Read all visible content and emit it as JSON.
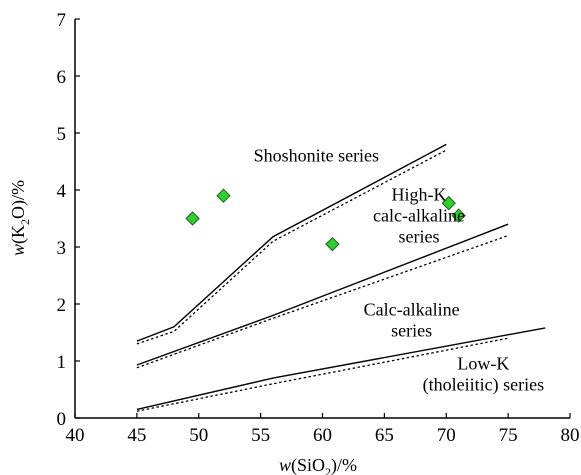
{
  "chart_data": {
    "type": "scatter",
    "title": "",
    "xlabel": {
      "prefix": "w",
      "open": "(SiO",
      "sub": "2",
      "close": ")/%"
    },
    "ylabel": {
      "prefix": "w",
      "open": "(K",
      "sub": "2",
      "close": "O)/%"
    },
    "xlim": [
      40,
      80
    ],
    "ylim": [
      0,
      7
    ],
    "x_ticks": [
      "40",
      "45",
      "50",
      "55",
      "60",
      "65",
      "70",
      "75",
      "80"
    ],
    "y_ticks": [
      "0",
      "1",
      "2",
      "3",
      "4",
      "5",
      "6",
      "7"
    ],
    "grid": false,
    "marker_color": "#33cc33",
    "points": [
      {
        "x": 49.5,
        "y": 3.5
      },
      {
        "x": 52.0,
        "y": 3.9
      },
      {
        "x": 60.8,
        "y": 3.05
      },
      {
        "x": 70.2,
        "y": 3.77
      },
      {
        "x": 71.0,
        "y": 3.55
      }
    ],
    "boundary_lines": [
      {
        "style": "solid",
        "points": [
          [
            45,
            1.35
          ],
          [
            48,
            1.6
          ],
          [
            56,
            3.18
          ],
          [
            70,
            4.8
          ]
        ]
      },
      {
        "style": "dotted",
        "points": [
          [
            45,
            1.3
          ],
          [
            48,
            1.52
          ],
          [
            56,
            3.1
          ],
          [
            70,
            4.7
          ]
        ]
      },
      {
        "style": "solid",
        "points": [
          [
            45,
            0.93
          ],
          [
            56,
            1.8
          ],
          [
            75,
            3.4
          ]
        ]
      },
      {
        "style": "dotted",
        "points": [
          [
            45,
            0.88
          ],
          [
            56,
            1.75
          ],
          [
            75,
            3.2
          ]
        ]
      },
      {
        "style": "solid",
        "points": [
          [
            45,
            0.15
          ],
          [
            56,
            0.7
          ],
          [
            78,
            1.58
          ]
        ]
      },
      {
        "style": "dotted",
        "points": [
          [
            45,
            0.12
          ],
          [
            56,
            0.6
          ],
          [
            75,
            1.4
          ]
        ]
      }
    ],
    "series_labels": [
      {
        "lines": [
          "Shoshonite series"
        ],
        "x": 59.5,
        "y": 4.5
      },
      {
        "lines": [
          "High-K",
          "calc-alkaline",
          "series"
        ],
        "x": 67.8,
        "y": 3.82
      },
      {
        "lines": [
          "Calc-alkaline",
          "series"
        ],
        "x": 67.2,
        "y": 1.8
      },
      {
        "lines": [
          "Low-K",
          "(tholeiitic) series"
        ],
        "x": 73.0,
        "y": 0.85
      }
    ]
  }
}
